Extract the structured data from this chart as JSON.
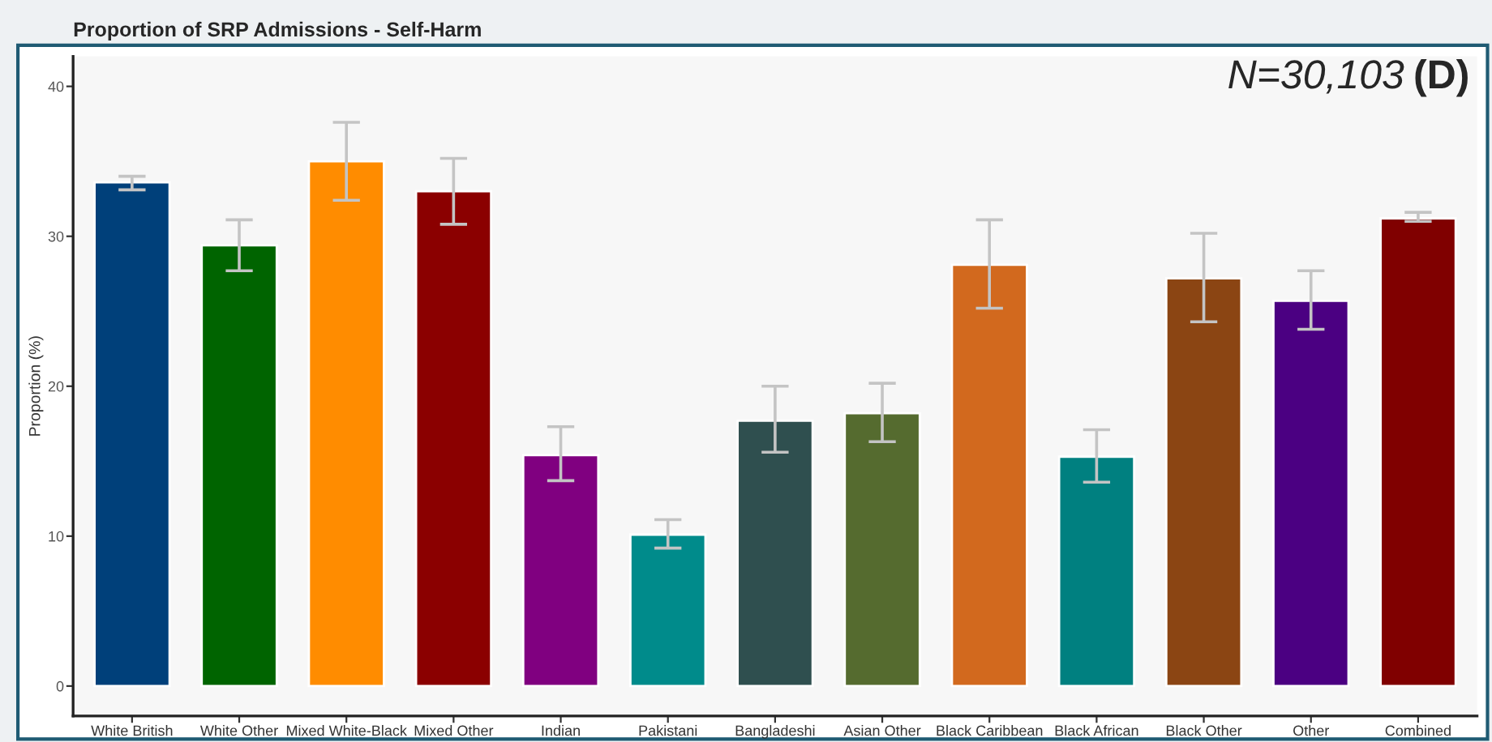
{
  "chart_data": {
    "type": "bar",
    "title": "Proportion of SRP Admissions - Self-Harm",
    "ylabel": "Proportion (%)",
    "annotations": [
      "N=30,103",
      "(D)"
    ],
    "categories": [
      "White British",
      "White Other",
      "Mixed White-Black",
      "Mixed Other",
      "Indian",
      "Pakistani",
      "Bangladeshi",
      "Asian Other",
      "Black Caribbean",
      "Black African",
      "Black Other",
      "Other",
      "Combined"
    ],
    "values": [
      33.6,
      29.4,
      35.0,
      33.0,
      15.4,
      10.1,
      17.7,
      18.2,
      28.1,
      15.3,
      27.2,
      25.7,
      31.2
    ],
    "errors": [
      [
        33.1,
        34.0
      ],
      [
        27.7,
        31.1
      ],
      [
        32.4,
        37.6
      ],
      [
        30.8,
        35.2
      ],
      [
        13.7,
        17.3
      ],
      [
        9.2,
        11.1
      ],
      [
        15.6,
        20.0
      ],
      [
        16.3,
        20.2
      ],
      [
        25.2,
        31.1
      ],
      [
        13.6,
        17.1
      ],
      [
        24.3,
        30.2
      ],
      [
        23.8,
        27.7
      ],
      [
        31.0,
        31.6
      ]
    ],
    "colors": [
      "#00407a",
      "#006400",
      "#ff8c00",
      "#8b0000",
      "#800080",
      "#008b8b",
      "#2f4f4f",
      "#556b2f",
      "#d2691e",
      "#008080",
      "#8b4513",
      "#4b0082",
      "#800000"
    ],
    "ylim": [
      -2,
      42
    ],
    "yticks": [
      0,
      10,
      20,
      30,
      40
    ],
    "grid": false,
    "legend": false
  }
}
